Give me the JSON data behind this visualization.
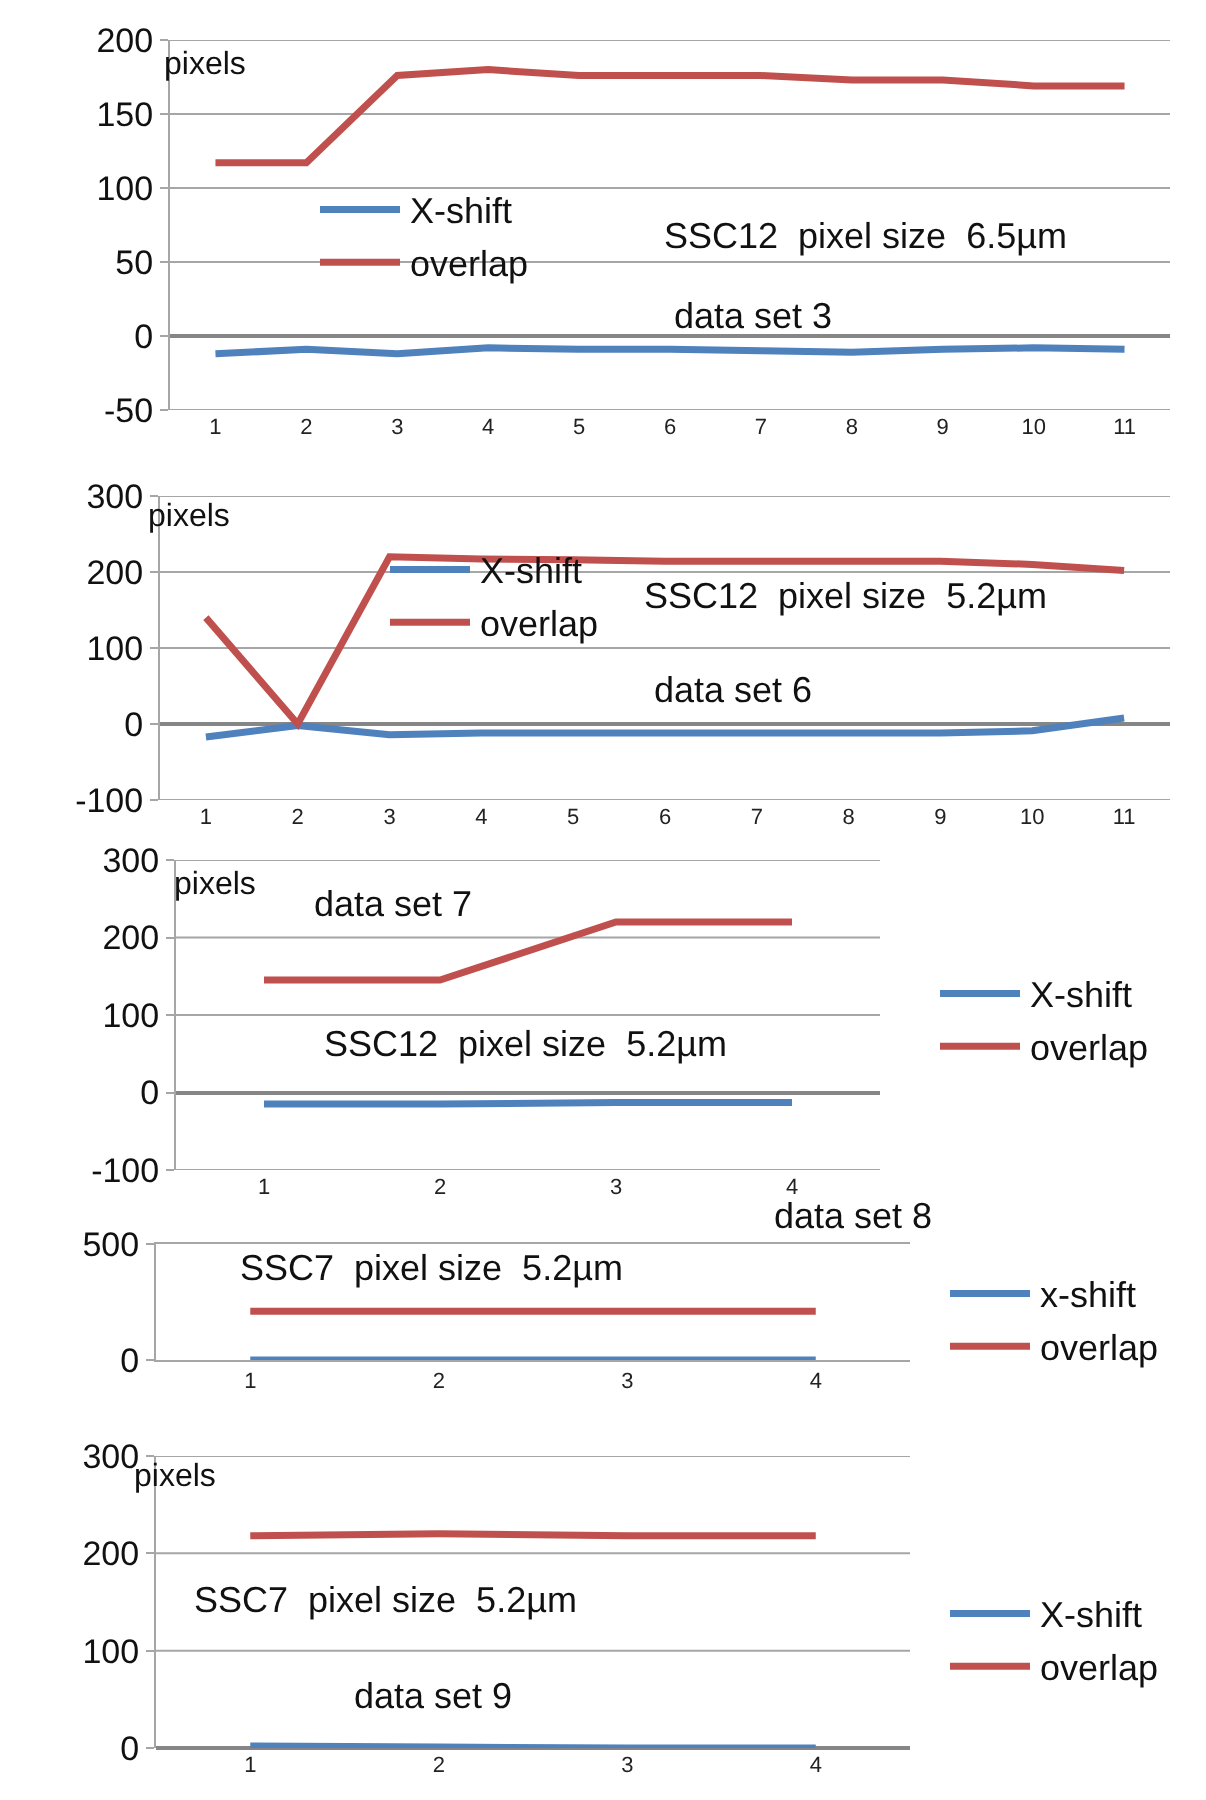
{
  "chart_data": [
    {
      "type": "line",
      "title": "data set 3",
      "ylabel": "pixels",
      "annotations": [
        "SSC12  pixel size  6.5µm"
      ],
      "categories": [
        "1",
        "2",
        "3",
        "4",
        "5",
        "6",
        "7",
        "8",
        "9",
        "10",
        "11"
      ],
      "series": [
        {
          "name": "X-shift",
          "color": "#4f81bd",
          "values": [
            -12,
            -9,
            -12,
            -8,
            -9,
            -9,
            -10,
            -11,
            -9,
            -8,
            -9
          ]
        },
        {
          "name": "overlap",
          "color": "#c0504d",
          "values": [
            117,
            117,
            176,
            180,
            176,
            176,
            176,
            173,
            173,
            169,
            169
          ]
        }
      ],
      "ylim": [
        -50,
        200
      ],
      "yticks": [
        -50,
        0,
        50,
        100,
        150,
        200
      ],
      "grid": "y",
      "legend": "left"
    },
    {
      "type": "line",
      "title": "data set 6",
      "ylabel": "pixels",
      "annotations": [
        "SSC12  pixel size  5.2µm"
      ],
      "categories": [
        "1",
        "2",
        "3",
        "4",
        "5",
        "6",
        "7",
        "8",
        "9",
        "10",
        "11"
      ],
      "series": [
        {
          "name": "X-shift",
          "color": "#4f81bd",
          "values": [
            -17,
            -2,
            -14,
            -12,
            -12,
            -12,
            -12,
            -12,
            -12,
            -9,
            8
          ]
        },
        {
          "name": "overlap",
          "color": "#c0504d",
          "values": [
            140,
            0,
            220,
            217,
            216,
            214,
            214,
            214,
            214,
            210,
            202
          ]
        }
      ],
      "ylim": [
        -100,
        300
      ],
      "yticks": [
        -100,
        0,
        100,
        200,
        300
      ],
      "grid": "y",
      "legend": "center"
    },
    {
      "type": "line",
      "title": "data set 7",
      "ylabel": "pixels",
      "annotations": [
        "SSC12  pixel size  5.2µm"
      ],
      "categories": [
        "1",
        "2",
        "3",
        "4"
      ],
      "series": [
        {
          "name": "X-shift",
          "color": "#4f81bd",
          "values": [
            -15,
            -15,
            -13,
            -13
          ]
        },
        {
          "name": "overlap",
          "color": "#c0504d",
          "values": [
            145,
            145,
            220,
            220
          ]
        }
      ],
      "ylim": [
        -100,
        300
      ],
      "yticks": [
        -100,
        0,
        100,
        200,
        300
      ],
      "grid": "y",
      "legend": "right"
    },
    {
      "type": "line",
      "title": "data set 8",
      "annotations": [
        "SSC7  pixel size  5.2µm"
      ],
      "categories": [
        "1",
        "2",
        "3",
        "4"
      ],
      "series": [
        {
          "name": "x-shift",
          "color": "#4f81bd",
          "values": [
            0,
            0,
            0,
            0
          ]
        },
        {
          "name": "overlap",
          "color": "#c0504d",
          "values": [
            210,
            210,
            210,
            210
          ]
        }
      ],
      "ylim": [
        0,
        500
      ],
      "yticks": [
        0,
        500
      ],
      "legend": "right"
    },
    {
      "type": "line",
      "title": "data set 9",
      "ylabel": "pixels",
      "annotations": [
        "SSC7  pixel size  5.2µm"
      ],
      "categories": [
        "1",
        "2",
        "3",
        "4"
      ],
      "series": [
        {
          "name": "X-shift",
          "color": "#4f81bd",
          "values": [
            2,
            1,
            0,
            0
          ]
        },
        {
          "name": "overlap",
          "color": "#c0504d",
          "values": [
            218,
            220,
            218,
            218
          ]
        }
      ],
      "ylim": [
        0,
        300
      ],
      "yticks": [
        0,
        100,
        200,
        300
      ],
      "grid": "y",
      "legend": "right"
    }
  ]
}
